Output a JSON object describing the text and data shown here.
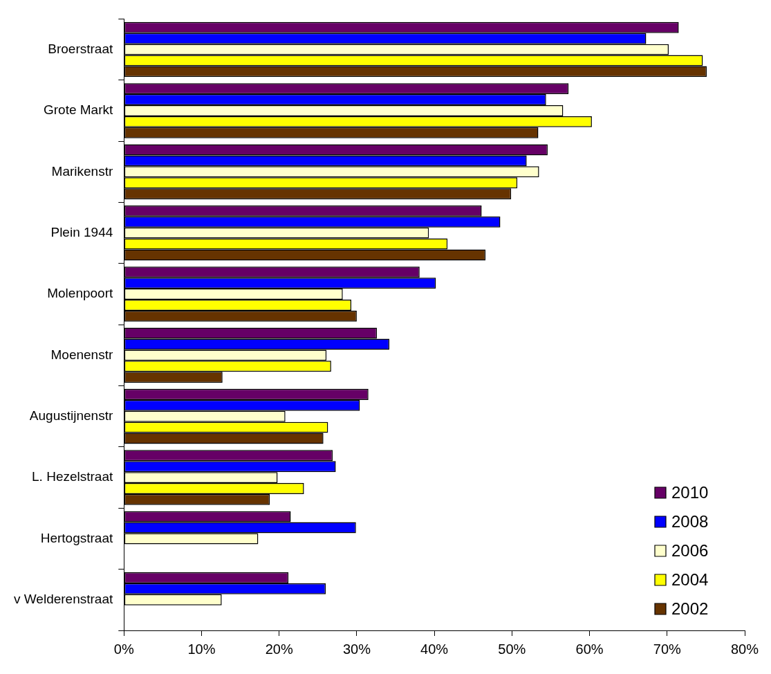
{
  "chart_data": {
    "type": "bar",
    "orientation": "horizontal",
    "categories": [
      "Broerstraat",
      "Grote Markt",
      "Marikenstr",
      "Plein 1944",
      "Molenpoort",
      "Moenenstr",
      "Augustijnenstr",
      "L. Hezelstraat",
      "Hertogstraat",
      "v Welderenstraat"
    ],
    "series": [
      {
        "name": "2010",
        "color": "#660066",
        "values": [
          71.5,
          57.3,
          54.6,
          46.1,
          38.1,
          32.6,
          31.5,
          26.9,
          21.5,
          21.2
        ]
      },
      {
        "name": "2008",
        "color": "#0000ff",
        "values": [
          67.3,
          54.4,
          51.9,
          48.5,
          40.2,
          34.2,
          30.4,
          27.3,
          29.9,
          26.0
        ]
      },
      {
        "name": "2006",
        "color": "#ffffcc",
        "values": [
          70.2,
          56.6,
          53.5,
          39.3,
          28.2,
          26.1,
          20.8,
          19.8,
          17.3,
          12.6
        ]
      },
      {
        "name": "2004",
        "color": "#ffff00",
        "values": [
          74.6,
          60.3,
          50.7,
          41.7,
          29.3,
          26.7,
          26.3,
          23.2,
          null,
          null
        ]
      },
      {
        "name": "2002",
        "color": "#663300",
        "values": [
          75.1,
          53.4,
          49.9,
          46.6,
          30.0,
          12.7,
          25.7,
          18.8,
          null,
          null
        ]
      }
    ],
    "xlim": [
      0,
      80
    ],
    "xticks": [
      {
        "value": 0,
        "label": "0%"
      },
      {
        "value": 10,
        "label": "10%"
      },
      {
        "value": 20,
        "label": "20%"
      },
      {
        "value": 30,
        "label": "30%"
      },
      {
        "value": 40,
        "label": "40%"
      },
      {
        "value": 50,
        "label": "50%"
      },
      {
        "value": 60,
        "label": "60%"
      },
      {
        "value": 70,
        "label": "70%"
      },
      {
        "value": 80,
        "label": "80%"
      }
    ],
    "grid": false,
    "legend": "bottom right"
  }
}
